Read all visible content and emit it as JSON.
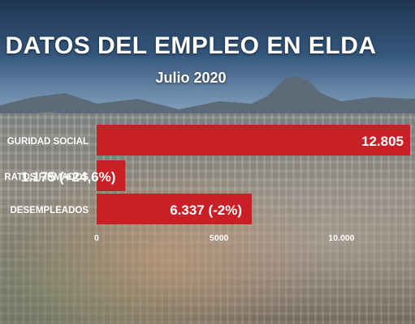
{
  "header": {
    "title": "DATOS DEL EMPLEO EN ELDA",
    "subtitle": "Julio 2020"
  },
  "chart_data": {
    "type": "bar",
    "orientation": "horizontal",
    "title": "DATOS DEL EMPLEO EN ELDA",
    "subtitle": "Julio 2020",
    "categories": [
      "AFILIADOS A LA SEGURIDAD SOCIAL",
      "CONTRATOS FIRMADOS",
      "DESEMPLEADOS"
    ],
    "visible_category_labels": [
      "GURIDAD SOCIAL",
      "RATOS FIRMADOS",
      "DESEMPLEADOS"
    ],
    "values": [
      12805,
      1175,
      6337
    ],
    "value_labels": [
      "12.805",
      "1.175 (+24,6%)",
      "6.337 (-2%)"
    ],
    "xlim": [
      0,
      12805
    ],
    "xticks": [
      0,
      5000,
      10000
    ],
    "xtick_labels": [
      "0",
      "5000",
      "10.000"
    ],
    "grid": false,
    "legend": "none",
    "bar_color": "#c92027"
  }
}
